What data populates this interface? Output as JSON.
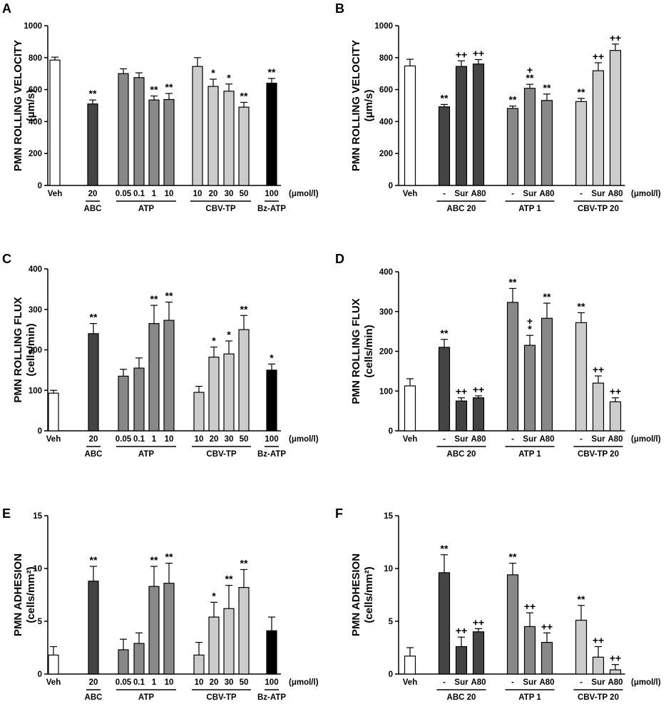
{
  "figure": {
    "unit": "(μmol/l)"
  },
  "chart_data": [
    {
      "id": "A",
      "type": "bar",
      "title": "",
      "ylabel": "PMN ROLLING VELOCITY",
      "yunit": "(μm/s)",
      "ylim": [
        0,
        1000
      ],
      "yticks": [
        0,
        200,
        400,
        600,
        800,
        1000
      ],
      "bars": [
        {
          "label": "Veh",
          "value": 785,
          "err": 18,
          "fill": "#ffffff",
          "sig": ""
        },
        {
          "label": "20",
          "value": 510,
          "err": 25,
          "fill": "#444444",
          "sig": "**"
        },
        {
          "label": "0.05",
          "value": 700,
          "err": 30,
          "fill": "#888888",
          "sig": ""
        },
        {
          "label": "0.1",
          "value": 675,
          "err": 30,
          "fill": "#888888",
          "sig": ""
        },
        {
          "label": "1",
          "value": 535,
          "err": 25,
          "fill": "#888888",
          "sig": "**"
        },
        {
          "label": "10",
          "value": 538,
          "err": 38,
          "fill": "#888888",
          "sig": "**"
        },
        {
          "label": "10",
          "value": 745,
          "err": 55,
          "fill": "#cccccc",
          "sig": ""
        },
        {
          "label": "20",
          "value": 620,
          "err": 45,
          "fill": "#cccccc",
          "sig": "*"
        },
        {
          "label": "30",
          "value": 590,
          "err": 45,
          "fill": "#cccccc",
          "sig": "*"
        },
        {
          "label": "50",
          "value": 490,
          "err": 30,
          "fill": "#cccccc",
          "sig": "**"
        },
        {
          "label": "100",
          "value": 640,
          "err": 30,
          "fill": "#000000",
          "sig": "**"
        }
      ],
      "groups": [
        {
          "name": "ABC",
          "from": 1,
          "to": 1
        },
        {
          "name": "ATP",
          "from": 2,
          "to": 5
        },
        {
          "name": "CBV-TP",
          "from": 6,
          "to": 9
        },
        {
          "name": "Bz-ATP",
          "from": 10,
          "to": 10
        }
      ]
    },
    {
      "id": "B",
      "type": "bar",
      "title": "",
      "ylabel": "PMN ROLLING VELOCITY",
      "yunit": "(μm/s)",
      "ylim": [
        0,
        1000
      ],
      "yticks": [
        0,
        200,
        400,
        600,
        800,
        1000
      ],
      "bars": [
        {
          "label": "Veh",
          "value": 748,
          "err": 42,
          "fill": "#ffffff",
          "sig": ""
        },
        {
          "label": "-",
          "value": 492,
          "err": 15,
          "fill": "#444444",
          "sig": "**"
        },
        {
          "label": "Sur",
          "value": 745,
          "err": 35,
          "fill": "#444444",
          "sig": "++"
        },
        {
          "label": "A80",
          "value": 760,
          "err": 28,
          "fill": "#444444",
          "sig": "++"
        },
        {
          "label": "-",
          "value": 482,
          "err": 15,
          "fill": "#888888",
          "sig": "**"
        },
        {
          "label": "Sur",
          "value": 608,
          "err": 25,
          "fill": "#888888",
          "sig": "+\n**"
        },
        {
          "label": "A80",
          "value": 532,
          "err": 40,
          "fill": "#888888",
          "sig": "**"
        },
        {
          "label": "-",
          "value": 525,
          "err": 20,
          "fill": "#cccccc",
          "sig": "**"
        },
        {
          "label": "Sur",
          "value": 718,
          "err": 50,
          "fill": "#cccccc",
          "sig": "++"
        },
        {
          "label": "A80",
          "value": 845,
          "err": 40,
          "fill": "#cccccc",
          "sig": "++"
        }
      ],
      "groups": [
        {
          "name": "ABC 20",
          "from": 1,
          "to": 3
        },
        {
          "name": "ATP 1",
          "from": 4,
          "to": 6
        },
        {
          "name": "CBV-TP 20",
          "from": 7,
          "to": 9
        }
      ]
    },
    {
      "id": "C",
      "type": "bar",
      "title": "",
      "ylabel": "PMN ROLLING FLUX",
      "yunit": "(cells/min)",
      "ylim": [
        0,
        400
      ],
      "yticks": [
        0,
        100,
        200,
        300,
        400
      ],
      "bars": [
        {
          "label": "Veh",
          "value": 93,
          "err": 7,
          "fill": "#ffffff",
          "sig": ""
        },
        {
          "label": "20",
          "value": 240,
          "err": 25,
          "fill": "#444444",
          "sig": "**"
        },
        {
          "label": "0.05",
          "value": 135,
          "err": 17,
          "fill": "#888888",
          "sig": ""
        },
        {
          "label": "0.1",
          "value": 155,
          "err": 25,
          "fill": "#888888",
          "sig": ""
        },
        {
          "label": "1",
          "value": 265,
          "err": 45,
          "fill": "#888888",
          "sig": "**"
        },
        {
          "label": "10",
          "value": 273,
          "err": 45,
          "fill": "#888888",
          "sig": "**"
        },
        {
          "label": "10",
          "value": 95,
          "err": 15,
          "fill": "#cccccc",
          "sig": ""
        },
        {
          "label": "20",
          "value": 182,
          "err": 25,
          "fill": "#cccccc",
          "sig": "*"
        },
        {
          "label": "30",
          "value": 190,
          "err": 32,
          "fill": "#cccccc",
          "sig": "*"
        },
        {
          "label": "50",
          "value": 250,
          "err": 35,
          "fill": "#cccccc",
          "sig": "**"
        },
        {
          "label": "100",
          "value": 150,
          "err": 15,
          "fill": "#000000",
          "sig": "*"
        }
      ],
      "groups": [
        {
          "name": "ABC",
          "from": 1,
          "to": 1
        },
        {
          "name": "ATP",
          "from": 2,
          "to": 5
        },
        {
          "name": "CBV-TP",
          "from": 6,
          "to": 9
        },
        {
          "name": "Bz-ATP",
          "from": 10,
          "to": 10
        }
      ]
    },
    {
      "id": "D",
      "type": "bar",
      "title": "",
      "ylabel": "PMN ROLLING FLUX",
      "yunit": "(cells/min)",
      "ylim": [
        0,
        400
      ],
      "yticks": [
        0,
        100,
        200,
        300,
        400
      ],
      "bars": [
        {
          "label": "Veh",
          "value": 113,
          "err": 18,
          "fill": "#ffffff",
          "sig": ""
        },
        {
          "label": "-",
          "value": 210,
          "err": 20,
          "fill": "#444444",
          "sig": "**"
        },
        {
          "label": "Sur",
          "value": 75,
          "err": 8,
          "fill": "#444444",
          "sig": "++"
        },
        {
          "label": "A80",
          "value": 83,
          "err": 5,
          "fill": "#444444",
          "sig": "++"
        },
        {
          "label": "-",
          "value": 323,
          "err": 35,
          "fill": "#888888",
          "sig": "**"
        },
        {
          "label": "Sur",
          "value": 215,
          "err": 25,
          "fill": "#888888",
          "sig": "+\n*"
        },
        {
          "label": "A80",
          "value": 283,
          "err": 38,
          "fill": "#888888",
          "sig": "**"
        },
        {
          "label": "-",
          "value": 272,
          "err": 25,
          "fill": "#cccccc",
          "sig": "**"
        },
        {
          "label": "Sur",
          "value": 120,
          "err": 18,
          "fill": "#cccccc",
          "sig": "++"
        },
        {
          "label": "A80",
          "value": 73,
          "err": 10,
          "fill": "#cccccc",
          "sig": "++"
        }
      ],
      "groups": [
        {
          "name": "ABC 20",
          "from": 1,
          "to": 3
        },
        {
          "name": "ATP 1",
          "from": 4,
          "to": 6
        },
        {
          "name": "CBV-TP 20",
          "from": 7,
          "to": 9
        }
      ]
    },
    {
      "id": "E",
      "type": "bar",
      "title": "",
      "ylabel": "PMN ADHESION",
      "yunit": "(cells/mm²)",
      "ylim": [
        0,
        15
      ],
      "yticks": [
        0,
        5,
        10,
        15
      ],
      "bars": [
        {
          "label": "Veh",
          "value": 1.8,
          "err": 0.8,
          "fill": "#ffffff",
          "sig": ""
        },
        {
          "label": "20",
          "value": 8.8,
          "err": 1.4,
          "fill": "#444444",
          "sig": "**"
        },
        {
          "label": "0.05",
          "value": 2.3,
          "err": 1.0,
          "fill": "#888888",
          "sig": ""
        },
        {
          "label": "0.1",
          "value": 2.9,
          "err": 1.0,
          "fill": "#888888",
          "sig": ""
        },
        {
          "label": "1",
          "value": 8.3,
          "err": 1.9,
          "fill": "#888888",
          "sig": "**"
        },
        {
          "label": "10",
          "value": 8.6,
          "err": 1.9,
          "fill": "#888888",
          "sig": "**"
        },
        {
          "label": "10",
          "value": 1.8,
          "err": 1.2,
          "fill": "#cccccc",
          "sig": ""
        },
        {
          "label": "20",
          "value": 5.4,
          "err": 1.4,
          "fill": "#cccccc",
          "sig": "*"
        },
        {
          "label": "30",
          "value": 6.2,
          "err": 2.2,
          "fill": "#cccccc",
          "sig": "**"
        },
        {
          "label": "50",
          "value": 8.2,
          "err": 1.7,
          "fill": "#cccccc",
          "sig": "**"
        },
        {
          "label": "100",
          "value": 4.1,
          "err": 1.3,
          "fill": "#000000",
          "sig": ""
        }
      ],
      "groups": [
        {
          "name": "ABC",
          "from": 1,
          "to": 1
        },
        {
          "name": "ATP",
          "from": 2,
          "to": 5
        },
        {
          "name": "CBV-TP",
          "from": 6,
          "to": 9
        },
        {
          "name": "Bz-ATP",
          "from": 10,
          "to": 10
        }
      ]
    },
    {
      "id": "F",
      "type": "bar",
      "title": "",
      "ylabel": "PMN ADHESION",
      "yunit": "(cells/mm²)",
      "ylim": [
        0,
        15
      ],
      "yticks": [
        0,
        5,
        10,
        15
      ],
      "bars": [
        {
          "label": "Veh",
          "value": 1.7,
          "err": 0.8,
          "fill": "#ffffff",
          "sig": ""
        },
        {
          "label": "-",
          "value": 9.6,
          "err": 1.7,
          "fill": "#444444",
          "sig": "**"
        },
        {
          "label": "Sur",
          "value": 2.6,
          "err": 0.9,
          "fill": "#444444",
          "sig": "++"
        },
        {
          "label": "A80",
          "value": 4.0,
          "err": 0.3,
          "fill": "#444444",
          "sig": "++"
        },
        {
          "label": "-",
          "value": 9.4,
          "err": 1.1,
          "fill": "#888888",
          "sig": "**"
        },
        {
          "label": "Sur",
          "value": 4.5,
          "err": 1.3,
          "fill": "#888888",
          "sig": "++"
        },
        {
          "label": "A80",
          "value": 3.0,
          "err": 0.9,
          "fill": "#888888",
          "sig": "++"
        },
        {
          "label": "-",
          "value": 5.1,
          "err": 1.4,
          "fill": "#cccccc",
          "sig": "**"
        },
        {
          "label": "Sur",
          "value": 1.6,
          "err": 1.0,
          "fill": "#cccccc",
          "sig": "++"
        },
        {
          "label": "A80",
          "value": 0.4,
          "err": 0.5,
          "fill": "#cccccc",
          "sig": "++"
        }
      ],
      "groups": [
        {
          "name": "ABC 20",
          "from": 1,
          "to": 3
        },
        {
          "name": "ATP 1",
          "from": 4,
          "to": 6
        },
        {
          "name": "CBV-TP 20",
          "from": 7,
          "to": 9
        }
      ]
    }
  ]
}
